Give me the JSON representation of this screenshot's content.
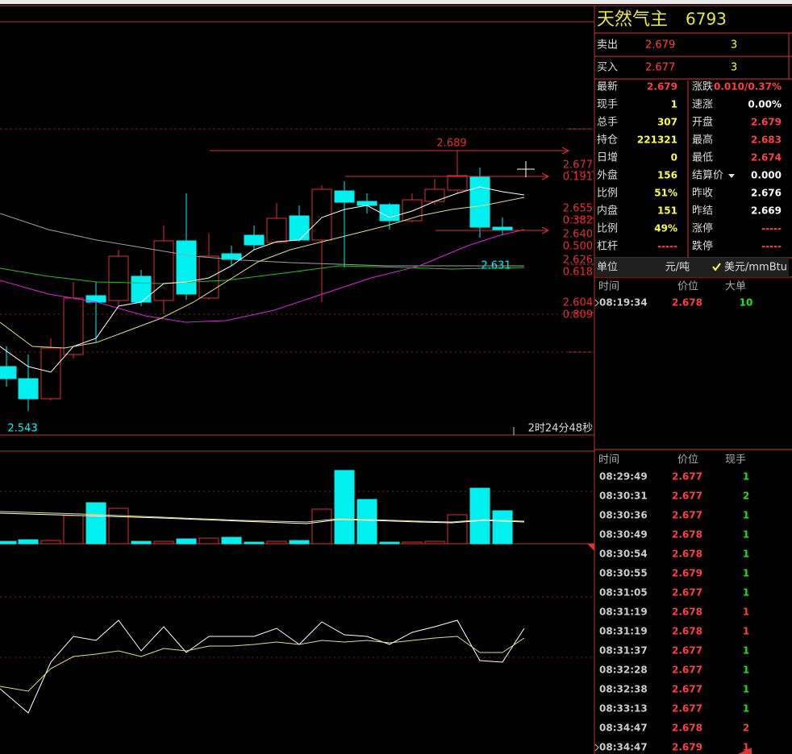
{
  "header": {
    "name": "天然气主",
    "code": "6793"
  },
  "quote": [
    {
      "label": "卖出",
      "price": "2.679",
      "volume": "3"
    },
    {
      "label": "买入",
      "price": "2.677",
      "volume": "3"
    }
  ],
  "stats": [
    [
      {
        "label": "最新",
        "value": "2.679",
        "color": "#ff4040"
      },
      {
        "label": "涨跌",
        "value": "0.010/0.37%",
        "color": "#ff4040"
      }
    ],
    [
      {
        "label": "现手",
        "value": "1",
        "color": "#ffff40"
      },
      {
        "label": "速涨",
        "value": "0.00%",
        "color": "#ffffff"
      }
    ],
    [
      {
        "label": "总手",
        "value": "307",
        "color": "#ffff40"
      },
      {
        "label": "开盘",
        "value": "2.679",
        "color": "#ff4040"
      }
    ],
    [
      {
        "label": "持仓",
        "value": "221321",
        "color": "#ffff40"
      },
      {
        "label": "最高",
        "value": "2.683",
        "color": "#ff4040"
      }
    ],
    [
      {
        "label": "日增",
        "value": "0",
        "color": "#ffff40"
      },
      {
        "label": "最低",
        "value": "2.674",
        "color": "#ff4040"
      }
    ],
    [
      {
        "label": "外盘",
        "value": "156",
        "color": "#ffff40"
      },
      {
        "label": "结算价",
        "value": "0.000",
        "color": "#ffffff"
      }
    ],
    [
      {
        "label": "比例",
        "value": "51%",
        "color": "#ffff40"
      },
      {
        "label": "昨收",
        "value": "2.676",
        "color": "#ffffff"
      }
    ],
    [
      {
        "label": "内盘",
        "value": "151",
        "color": "#ffff40"
      },
      {
        "label": "昨结",
        "value": "2.669",
        "color": "#ffffff"
      }
    ],
    [
      {
        "label": "比例",
        "value": "49%",
        "color": "#ffff40"
      },
      {
        "label": "涨停",
        "value": "-----",
        "color": "#ff4040"
      }
    ],
    [
      {
        "label": "杠杆",
        "value": "-----",
        "color": "#ff4040"
      },
      {
        "label": "跌停",
        "value": "-----",
        "color": "#ff4040"
      }
    ]
  ],
  "unit": {
    "label": "单位",
    "value": "元/吨",
    "option": "美元/mmBtu"
  },
  "big_orders": {
    "header": [
      "时间",
      "价位",
      "大单"
    ],
    "rows": [
      {
        "time": "08:19:34",
        "price": "2.678",
        "volume": "10",
        "color": "#20e020"
      }
    ]
  },
  "ticks": {
    "header": [
      "时间",
      "价位",
      "现手"
    ],
    "rows": [
      {
        "time": "08:29:49",
        "price": "2.677",
        "volume": "1",
        "color": "#20e020"
      },
      {
        "time": "08:30:31",
        "price": "2.677",
        "volume": "2",
        "color": "#20e020"
      },
      {
        "time": "08:30:36",
        "price": "2.677",
        "volume": "1",
        "color": "#20e020"
      },
      {
        "time": "08:30:49",
        "price": "2.678",
        "volume": "1",
        "color": "#20e020"
      },
      {
        "time": "08:30:54",
        "price": "2.678",
        "volume": "1",
        "color": "#20e020"
      },
      {
        "time": "08:30:55",
        "price": "2.679",
        "volume": "1",
        "color": "#20e020"
      },
      {
        "time": "08:31:05",
        "price": "2.677",
        "volume": "1",
        "color": "#20e020"
      },
      {
        "time": "08:31:19",
        "price": "2.678",
        "volume": "1",
        "color": "#ff4040"
      },
      {
        "time": "08:31:19",
        "price": "2.678",
        "volume": "1",
        "color": "#ff4040"
      },
      {
        "time": "08:31:37",
        "price": "2.677",
        "volume": "1",
        "color": "#20e020"
      },
      {
        "time": "08:32:28",
        "price": "2.677",
        "volume": "1",
        "color": "#20e020"
      },
      {
        "time": "08:32:38",
        "price": "2.677",
        "volume": "1",
        "color": "#20e020"
      },
      {
        "time": "08:33:13",
        "price": "2.677",
        "volume": "1",
        "color": "#20e020"
      },
      {
        "time": "08:34:47",
        "price": "2.678",
        "volume": "2",
        "color": "#ff4040"
      },
      {
        "time": "08:34:47",
        "price": "2.679",
        "volume": "1",
        "color": "#ff4040"
      }
    ]
  },
  "chart": {
    "high_label": "2.689",
    "low_label": "2.543",
    "last_low_label": "2.631",
    "countdown": "2时24分48秒",
    "fib_levels": [
      {
        "price": "2.677",
        "ratio": "0.191"
      },
      {
        "price": "2.655",
        "ratio": "0.382"
      },
      {
        "price": "2.640",
        "ratio": "0.500"
      },
      {
        "price": "2.626",
        "ratio": "0.618"
      },
      {
        "price": "2.604",
        "ratio": "0.809"
      }
    ]
  }
}
